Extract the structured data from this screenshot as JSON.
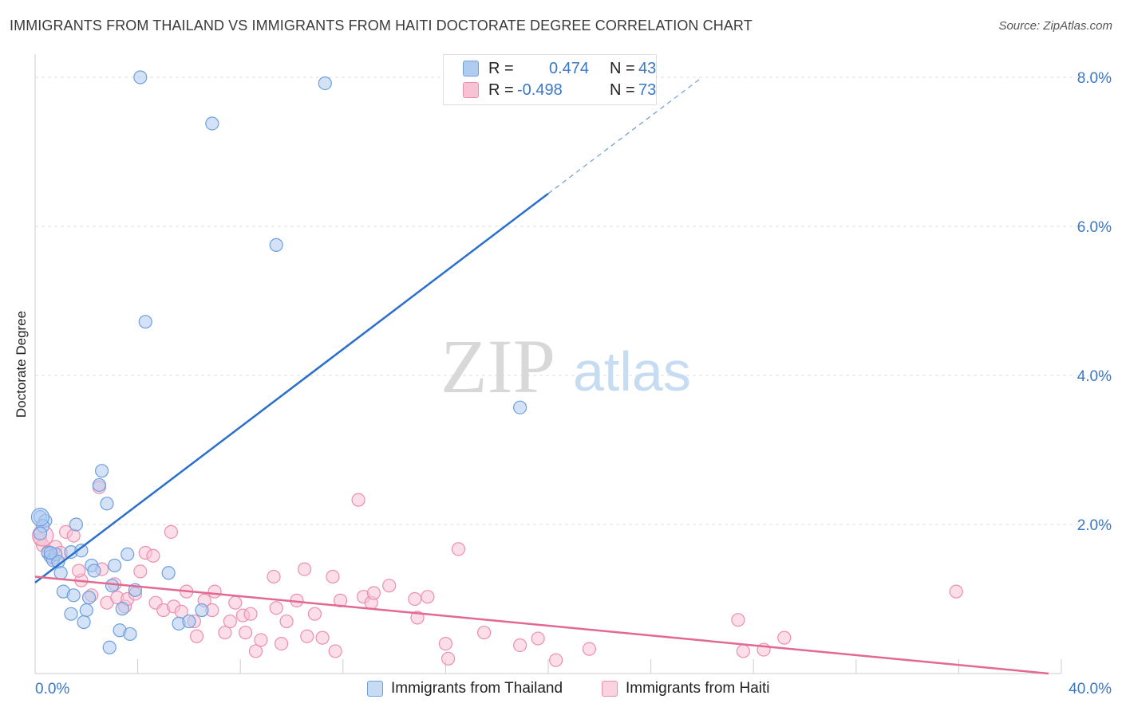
{
  "title": "IMMIGRANTS FROM THAILAND VS IMMIGRANTS FROM HAITI DOCTORATE DEGREE CORRELATION CHART",
  "source": "Source: ZipAtlas.com",
  "watermark": {
    "zip": "ZIP",
    "atlas": "atlas"
  },
  "colors": {
    "thailand_fill": "#aecbf0",
    "thailand_stroke": "#6d9fde",
    "thailand_line": "#2a6fca",
    "haiti_fill": "#f7c2d3",
    "haiti_stroke": "#ec8fae",
    "haiti_line": "#e2698f",
    "tick_label": "#3a78c8",
    "grid": "#dddddd"
  },
  "legend": {
    "rows": [
      {
        "r_label": "R =",
        "r_value": "0.474",
        "n_label": "N =",
        "n_value": "43"
      },
      {
        "r_label": "R =",
        "r_value": "-0.498",
        "n_label": "N =",
        "n_value": "73"
      }
    ]
  },
  "bottom_legend": [
    "Immigrants from Thailand",
    "Immigrants from Haiti"
  ],
  "chart_data": {
    "type": "scatter",
    "title": "IMMIGRANTS FROM THAILAND VS IMMIGRANTS FROM HAITI DOCTORATE DEGREE CORRELATION CHART",
    "xlabel": "",
    "ylabel": "Doctorate Degree",
    "xlim": [
      0,
      40
    ],
    "ylim": [
      0,
      8.0
    ],
    "x_tick_labels": [
      "0.0%",
      "40.0%"
    ],
    "y_ticks": [
      2,
      4,
      6,
      8
    ],
    "y_tick_labels": [
      "2.0%",
      "4.0%",
      "6.0%",
      "8.0%"
    ],
    "grid": true,
    "series": [
      {
        "name": "Immigrants from Thailand",
        "R": 0.474,
        "N": 43,
        "trend": {
          "x0": 0,
          "y0": 1.22,
          "x1": 20,
          "y1": 6.44,
          "dash_to_x": 26.0,
          "dash_to_y": 8.0
        },
        "points": [
          [
            0.2,
            2.1
          ],
          [
            0.4,
            2.05
          ],
          [
            0.3,
            1.98
          ],
          [
            0.5,
            1.62
          ],
          [
            0.6,
            1.57
          ],
          [
            0.7,
            1.52
          ],
          [
            0.8,
            1.6
          ],
          [
            0.9,
            1.5
          ],
          [
            1.0,
            1.35
          ],
          [
            1.4,
            1.63
          ],
          [
            1.6,
            2.0
          ],
          [
            1.8,
            1.65
          ],
          [
            1.1,
            1.1
          ],
          [
            1.5,
            1.05
          ],
          [
            1.4,
            0.8
          ],
          [
            2.0,
            0.85
          ],
          [
            2.1,
            1.02
          ],
          [
            2.2,
            1.45
          ],
          [
            2.3,
            1.38
          ],
          [
            2.5,
            2.53
          ],
          [
            2.6,
            2.72
          ],
          [
            2.8,
            2.28
          ],
          [
            3.0,
            1.18
          ],
          [
            3.1,
            1.45
          ],
          [
            3.4,
            0.87
          ],
          [
            3.3,
            0.58
          ],
          [
            3.6,
            1.6
          ],
          [
            3.7,
            0.53
          ],
          [
            2.9,
            0.35
          ],
          [
            3.9,
            1.12
          ],
          [
            4.1,
            8.0
          ],
          [
            4.3,
            4.72
          ],
          [
            5.2,
            1.35
          ],
          [
            5.6,
            0.67
          ],
          [
            6.0,
            0.7
          ],
          [
            6.5,
            0.85
          ],
          [
            6.9,
            7.38
          ],
          [
            9.4,
            5.75
          ],
          [
            11.3,
            7.92
          ],
          [
            18.9,
            3.57
          ],
          [
            1.9,
            0.69
          ],
          [
            0.6,
            1.62
          ],
          [
            0.2,
            1.88
          ]
        ]
      },
      {
        "name": "Immigrants from Haiti",
        "R": -0.498,
        "N": 73,
        "trend": {
          "x0": 0,
          "y0": 1.3,
          "x1": 39.5,
          "y1": 0.0
        },
        "points": [
          [
            0.2,
            1.8
          ],
          [
            0.3,
            1.72
          ],
          [
            0.5,
            1.63
          ],
          [
            0.7,
            1.55
          ],
          [
            0.8,
            1.7
          ],
          [
            1.0,
            1.62
          ],
          [
            1.2,
            1.9
          ],
          [
            1.5,
            1.85
          ],
          [
            1.8,
            1.25
          ],
          [
            1.7,
            1.38
          ],
          [
            2.2,
            1.05
          ],
          [
            2.5,
            2.5
          ],
          [
            2.6,
            1.4
          ],
          [
            2.8,
            0.95
          ],
          [
            3.1,
            1.2
          ],
          [
            3.2,
            1.02
          ],
          [
            3.5,
            0.9
          ],
          [
            3.6,
            1.0
          ],
          [
            3.9,
            1.07
          ],
          [
            4.1,
            1.37
          ],
          [
            4.3,
            1.62
          ],
          [
            4.6,
            1.58
          ],
          [
            4.7,
            0.95
          ],
          [
            5.0,
            0.85
          ],
          [
            5.4,
            0.9
          ],
          [
            5.7,
            0.83
          ],
          [
            5.3,
            1.9
          ],
          [
            5.9,
            1.1
          ],
          [
            6.2,
            0.7
          ],
          [
            6.3,
            0.5
          ],
          [
            6.6,
            0.98
          ],
          [
            6.9,
            0.85
          ],
          [
            7.0,
            1.1
          ],
          [
            7.4,
            0.55
          ],
          [
            7.6,
            0.7
          ],
          [
            7.8,
            0.95
          ],
          [
            8.1,
            0.78
          ],
          [
            8.2,
            0.55
          ],
          [
            8.4,
            0.8
          ],
          [
            8.6,
            0.3
          ],
          [
            8.8,
            0.45
          ],
          [
            9.3,
            1.3
          ],
          [
            9.4,
            0.88
          ],
          [
            9.6,
            0.4
          ],
          [
            9.8,
            0.7
          ],
          [
            10.2,
            0.98
          ],
          [
            10.5,
            1.4
          ],
          [
            10.6,
            0.5
          ],
          [
            10.9,
            0.8
          ],
          [
            11.2,
            0.48
          ],
          [
            11.6,
            1.3
          ],
          [
            11.7,
            0.3
          ],
          [
            11.9,
            0.98
          ],
          [
            12.6,
            2.33
          ],
          [
            12.8,
            1.03
          ],
          [
            13.1,
            0.95
          ],
          [
            13.2,
            1.08
          ],
          [
            13.8,
            1.18
          ],
          [
            14.8,
            1.0
          ],
          [
            14.9,
            0.75
          ],
          [
            15.3,
            1.03
          ],
          [
            16.1,
            0.2
          ],
          [
            16.0,
            0.4
          ],
          [
            16.5,
            1.67
          ],
          [
            17.5,
            0.55
          ],
          [
            18.9,
            0.38
          ],
          [
            19.6,
            0.47
          ],
          [
            20.3,
            0.18
          ],
          [
            21.6,
            0.33
          ],
          [
            27.4,
            0.72
          ],
          [
            27.6,
            0.3
          ],
          [
            28.4,
            0.32
          ],
          [
            29.2,
            0.48
          ]
        ]
      }
    ],
    "extra_points": {
      "haiti_far": [
        35.9,
        1.1
      ]
    }
  }
}
